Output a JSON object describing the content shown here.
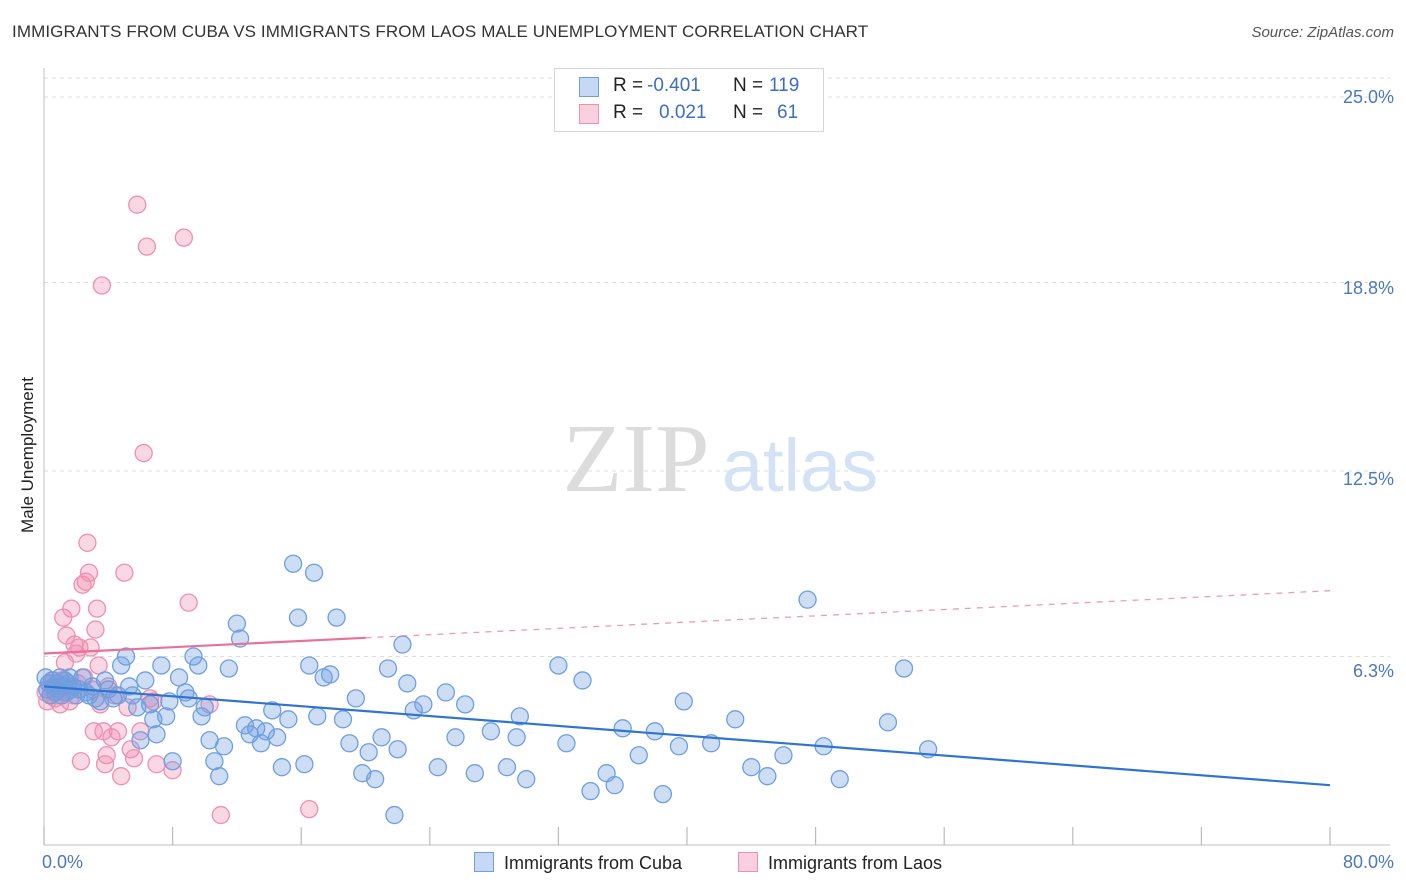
{
  "title": "IMMIGRANTS FROM CUBA VS IMMIGRANTS FROM LAOS MALE UNEMPLOYMENT CORRELATION CHART",
  "source": "Source: ZipAtlas.com",
  "watermark": {
    "part1": "ZIP",
    "part2": "atlas"
  },
  "colors": {
    "cuba": "#6f9fe0",
    "cuba_line": "#2f74d0",
    "laos": "#f08fb0",
    "laos_line": "#e8719a",
    "grid": "#dddddd",
    "tick_label": "#4a78c2"
  },
  "legend": {
    "rows": [
      {
        "r_label": "R =",
        "r_value": "-0.401",
        "n_label": "N =",
        "n_value": "119"
      },
      {
        "r_label": "R =",
        "r_value": "0.021",
        "n_label": "N =",
        "n_value": "61"
      }
    ]
  },
  "chart_data": {
    "type": "scatter",
    "title": "IMMIGRANTS FROM CUBA VS IMMIGRANTS FROM LAOS MALE UNEMPLOYMENT CORRELATION CHART",
    "xlabel": "",
    "ylabel": "Male Unemployment",
    "xlim": [
      0,
      80
    ],
    "ylim": [
      0,
      25.0
    ],
    "x_tick_labels": [
      "0.0%",
      "80.0%"
    ],
    "y_ticks": [
      6.3,
      12.5,
      18.8,
      25.0
    ],
    "y_tick_labels": [
      "6.3%",
      "12.5%",
      "18.8%",
      "25.0%"
    ],
    "grid": true,
    "legend_position": "bottom",
    "series": [
      {
        "name": "Immigrants from Cuba",
        "R": -0.401,
        "N": 119,
        "trend": {
          "x0": 0,
          "y0": 5.3,
          "x1": 80,
          "y1": 2.0,
          "dashed_from": null
        },
        "points": [
          [
            0.1,
            5.6
          ],
          [
            0.2,
            5.2
          ],
          [
            0.3,
            5.4
          ],
          [
            0.4,
            5.0
          ],
          [
            0.5,
            5.5
          ],
          [
            0.6,
            5.3
          ],
          [
            0.7,
            5.1
          ],
          [
            0.8,
            5.4
          ],
          [
            0.9,
            5.2
          ],
          [
            1.0,
            5.6
          ],
          [
            1.1,
            5.0
          ],
          [
            1.2,
            5.3
          ],
          [
            1.3,
            5.5
          ],
          [
            1.4,
            5.1
          ],
          [
            1.5,
            5.4
          ],
          [
            1.6,
            5.6
          ],
          [
            1.7,
            5.2
          ],
          [
            1.8,
            5.3
          ],
          [
            2.0,
            5.0
          ],
          [
            2.2,
            5.2
          ],
          [
            2.4,
            5.6
          ],
          [
            2.6,
            5.1
          ],
          [
            2.8,
            5.0
          ],
          [
            3.0,
            5.3
          ],
          [
            3.2,
            4.9
          ],
          [
            3.5,
            4.8
          ],
          [
            3.8,
            5.5
          ],
          [
            4.0,
            5.2
          ],
          [
            4.3,
            4.9
          ],
          [
            4.6,
            5.0
          ],
          [
            4.8,
            6.0
          ],
          [
            5.1,
            6.3
          ],
          [
            5.3,
            5.3
          ],
          [
            5.5,
            5.0
          ],
          [
            5.8,
            4.6
          ],
          [
            6.0,
            3.5
          ],
          [
            6.3,
            5.5
          ],
          [
            6.6,
            4.7
          ],
          [
            6.8,
            4.2
          ],
          [
            7.0,
            3.7
          ],
          [
            7.3,
            6.0
          ],
          [
            7.6,
            4.3
          ],
          [
            7.8,
            4.8
          ],
          [
            8.0,
            2.8
          ],
          [
            8.4,
            5.6
          ],
          [
            8.8,
            5.1
          ],
          [
            9.0,
            4.9
          ],
          [
            9.3,
            6.3
          ],
          [
            9.6,
            6.0
          ],
          [
            9.8,
            4.3
          ],
          [
            10.0,
            4.6
          ],
          [
            10.3,
            3.5
          ],
          [
            10.6,
            2.8
          ],
          [
            10.9,
            2.3
          ],
          [
            11.2,
            3.3
          ],
          [
            11.5,
            5.9
          ],
          [
            12.0,
            7.4
          ],
          [
            12.2,
            6.9
          ],
          [
            12.5,
            4.0
          ],
          [
            12.8,
            3.7
          ],
          [
            13.2,
            3.9
          ],
          [
            13.5,
            3.4
          ],
          [
            13.8,
            3.8
          ],
          [
            14.2,
            4.5
          ],
          [
            14.5,
            3.6
          ],
          [
            14.8,
            2.6
          ],
          [
            15.2,
            4.2
          ],
          [
            15.5,
            9.4
          ],
          [
            15.8,
            7.6
          ],
          [
            16.2,
            2.7
          ],
          [
            16.5,
            6.0
          ],
          [
            16.8,
            9.1
          ],
          [
            17.0,
            4.3
          ],
          [
            17.4,
            5.6
          ],
          [
            17.8,
            5.7
          ],
          [
            18.2,
            7.6
          ],
          [
            18.6,
            4.2
          ],
          [
            19.0,
            3.4
          ],
          [
            19.4,
            4.9
          ],
          [
            19.8,
            2.4
          ],
          [
            20.2,
            3.1
          ],
          [
            20.6,
            2.2
          ],
          [
            21.0,
            3.6
          ],
          [
            21.4,
            5.9
          ],
          [
            21.8,
            1.0
          ],
          [
            22.0,
            3.2
          ],
          [
            22.3,
            6.7
          ],
          [
            22.6,
            5.4
          ],
          [
            23.0,
            4.5
          ],
          [
            23.6,
            4.7
          ],
          [
            24.5,
            2.6
          ],
          [
            25.0,
            5.1
          ],
          [
            25.6,
            3.6
          ],
          [
            26.2,
            4.7
          ],
          [
            26.8,
            2.4
          ],
          [
            27.8,
            3.8
          ],
          [
            28.8,
            2.6
          ],
          [
            29.4,
            3.6
          ],
          [
            29.6,
            4.3
          ],
          [
            30.0,
            2.2
          ],
          [
            32.0,
            6.0
          ],
          [
            32.5,
            3.4
          ],
          [
            33.5,
            5.5
          ],
          [
            34.0,
            1.8
          ],
          [
            35.0,
            2.4
          ],
          [
            35.5,
            2.0
          ],
          [
            36.0,
            3.9
          ],
          [
            37.0,
            3.0
          ],
          [
            38.0,
            3.8
          ],
          [
            38.5,
            1.7
          ],
          [
            39.5,
            3.3
          ],
          [
            39.8,
            4.8
          ],
          [
            41.5,
            3.4
          ],
          [
            43.0,
            4.2
          ],
          [
            44.0,
            2.6
          ],
          [
            45.0,
            2.3
          ],
          [
            46.0,
            3.0
          ],
          [
            47.5,
            8.2
          ],
          [
            48.5,
            3.3
          ],
          [
            49.5,
            2.2
          ],
          [
            52.5,
            4.1
          ],
          [
            53.5,
            5.9
          ],
          [
            55.0,
            3.2
          ]
        ]
      },
      {
        "name": "Immigrants from Laos",
        "R": 0.021,
        "N": 61,
        "trend": {
          "x0": 0,
          "y0": 6.4,
          "x1": 80,
          "y1": 8.5,
          "dashed_from": 20
        },
        "points": [
          [
            0.1,
            5.1
          ],
          [
            0.2,
            4.8
          ],
          [
            0.3,
            5.4
          ],
          [
            0.4,
            5.0
          ],
          [
            0.5,
            5.2
          ],
          [
            0.6,
            5.5
          ],
          [
            0.7,
            4.9
          ],
          [
            0.8,
            5.3
          ],
          [
            0.9,
            5.0
          ],
          [
            1.0,
            4.7
          ],
          [
            1.1,
            5.5
          ],
          [
            1.2,
            7.6
          ],
          [
            1.3,
            6.1
          ],
          [
            1.4,
            7.0
          ],
          [
            1.5,
            5.3
          ],
          [
            1.6,
            4.8
          ],
          [
            1.7,
            7.9
          ],
          [
            1.8,
            5.0
          ],
          [
            1.9,
            6.7
          ],
          [
            2.0,
            6.4
          ],
          [
            2.1,
            5.4
          ],
          [
            2.2,
            6.6
          ],
          [
            2.3,
            2.8
          ],
          [
            2.4,
            8.7
          ],
          [
            2.5,
            5.6
          ],
          [
            2.6,
            8.8
          ],
          [
            2.7,
            10.1
          ],
          [
            2.8,
            9.1
          ],
          [
            2.9,
            6.6
          ],
          [
            3.0,
            5.2
          ],
          [
            3.1,
            3.8
          ],
          [
            3.2,
            7.2
          ],
          [
            3.3,
            7.9
          ],
          [
            3.4,
            6.0
          ],
          [
            3.5,
            4.7
          ],
          [
            3.6,
            18.7
          ],
          [
            3.7,
            3.8
          ],
          [
            3.8,
            2.7
          ],
          [
            3.9,
            3.0
          ],
          [
            4.0,
            5.3
          ],
          [
            4.2,
            3.6
          ],
          [
            4.4,
            5.0
          ],
          [
            4.6,
            3.8
          ],
          [
            4.8,
            2.3
          ],
          [
            5.0,
            9.1
          ],
          [
            5.2,
            4.6
          ],
          [
            5.4,
            3.2
          ],
          [
            5.6,
            2.9
          ],
          [
            5.8,
            21.4
          ],
          [
            6.0,
            3.8
          ],
          [
            6.2,
            13.1
          ],
          [
            6.4,
            20.0
          ],
          [
            6.6,
            4.9
          ],
          [
            6.8,
            4.8
          ],
          [
            7.0,
            2.7
          ],
          [
            8.0,
            2.5
          ],
          [
            8.7,
            20.3
          ],
          [
            9.0,
            8.1
          ],
          [
            10.3,
            4.7
          ],
          [
            11.0,
            1.0
          ],
          [
            16.5,
            1.2
          ]
        ]
      }
    ]
  }
}
